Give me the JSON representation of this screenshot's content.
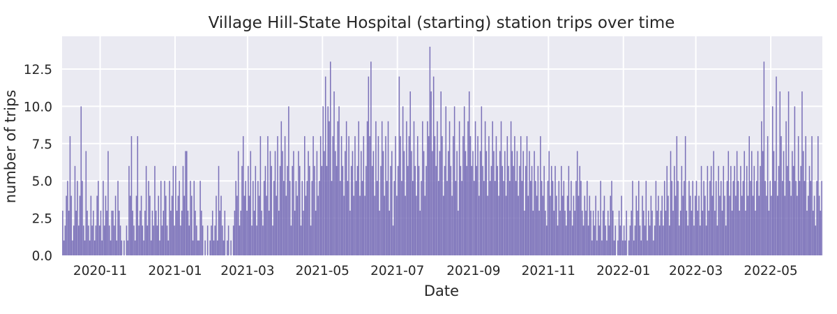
{
  "chart_data": {
    "type": "bar",
    "title": "Village Hill-State Hospital (starting) station trips over time",
    "xlabel": "Date",
    "ylabel": "number of trips",
    "x_range": [
      "2020-10-01",
      "2022-06-12"
    ],
    "ylim": [
      0,
      14.7
    ],
    "yticks": [
      0.0,
      2.5,
      5.0,
      7.5,
      10.0,
      12.5
    ],
    "yticklabels": [
      "0.0",
      "2.5",
      "5.0",
      "7.5",
      "10.0",
      "12.5"
    ],
    "xticks": [
      "2020-11-01",
      "2021-01-01",
      "2021-03-01",
      "2021-05-01",
      "2021-07-01",
      "2021-09-01",
      "2021-11-01",
      "2022-01-01",
      "2022-03-01",
      "2022-05-01"
    ],
    "xticklabels": [
      "2020-11",
      "2021-01",
      "2021-03",
      "2021-05",
      "2021-07",
      "2021-09",
      "2021-11",
      "2022-01",
      "2022-03",
      "2022-05"
    ],
    "grid": true,
    "colors": {
      "bar": "#7a70b8",
      "background": "#eaeaf2",
      "grid": "#ffffff"
    },
    "series": [
      {
        "monthly_daily_values": [
          {
            "month": "2020-10",
            "values": [
              3,
              1,
              2,
              4,
              5,
              3,
              8,
              4,
              1,
              2,
              6,
              3,
              5,
              2,
              4,
              10,
              5,
              2,
              1,
              7,
              3,
              2,
              1,
              4,
              2,
              3,
              1,
              2,
              4,
              5,
              2
            ]
          },
          {
            "month": "2020-11",
            "values": [
              3,
              1,
              5,
              2,
              4,
              3,
              7,
              2,
              1,
              3,
              3,
              2,
              4,
              1,
              5,
              3,
              2,
              1,
              0,
              1,
              0,
              2,
              1,
              6,
              4,
              8,
              3,
              2,
              1,
              4
            ]
          },
          {
            "month": "2020-12",
            "values": [
              8,
              2,
              3,
              4,
              2,
              1,
              3,
              6,
              2,
              5,
              4,
              1,
              3,
              2,
              6,
              3,
              2,
              4,
              1,
              5,
              2,
              3,
              5,
              4,
              2,
              1,
              5,
              3,
              4,
              6,
              2
            ]
          },
          {
            "month": "2021-01",
            "values": [
              6,
              3,
              4,
              5,
              2,
              3,
              6,
              4,
              7,
              7,
              3,
              2,
              5,
              4,
              1,
              5,
              3,
              2,
              1,
              1,
              5,
              3,
              2,
              0,
              1,
              0,
              2,
              0,
              1,
              2,
              3
            ]
          },
          {
            "month": "2021-02",
            "values": [
              1,
              2,
              4,
              1,
              6,
              3,
              4,
              2,
              1,
              3,
              0,
              1,
              2,
              0,
              1,
              0,
              2,
              3,
              5,
              4,
              7,
              2,
              3,
              6,
              8,
              4,
              5,
              3,
              6
            ]
          },
          {
            "month": "2021-03",
            "values": [
              5,
              4,
              7,
              2,
              5,
              3,
              6,
              2,
              5,
              4,
              8,
              3,
              2,
              5,
              6,
              4,
              8,
              3,
              7,
              6,
              2,
              5,
              7,
              4,
              8,
              3,
              6,
              9,
              7,
              5,
              8
            ]
          },
          {
            "month": "2021-04",
            "values": [
              4,
              6,
              10,
              5,
              2,
              6,
              7,
              3,
              5,
              4,
              7,
              6,
              2,
              5,
              3,
              8,
              4,
              5,
              7,
              6,
              2,
              5,
              8,
              6,
              3,
              7,
              4,
              5,
              8,
              6
            ]
          },
          {
            "month": "2021-05",
            "values": [
              10,
              7,
              12,
              6,
              10,
              9,
              13,
              5,
              8,
              11,
              7,
              6,
              9,
              10,
              5,
              8,
              6,
              4,
              7,
              9,
              5,
              8,
              3,
              6,
              7,
              4,
              8,
              5,
              6,
              9,
              4
            ]
          },
          {
            "month": "2021-06",
            "values": [
              7,
              5,
              8,
              4,
              6,
              9,
              12,
              8,
              13,
              6,
              7,
              4,
              9,
              5,
              8,
              3,
              6,
              9,
              7,
              4,
              8,
              5,
              9,
              3,
              6,
              7,
              2,
              5,
              8,
              4
            ]
          },
          {
            "month": "2021-07",
            "values": [
              6,
              12,
              8,
              5,
              10,
              7,
              4,
              9,
              6,
              8,
              11,
              7,
              5,
              9,
              6,
              4,
              8,
              6,
              3,
              5,
              9,
              7,
              4,
              6,
              9,
              8,
              14,
              11,
              7,
              12,
              8
            ]
          },
          {
            "month": "2021-08",
            "values": [
              6,
              9,
              5,
              7,
              11,
              8,
              4,
              6,
              10,
              5,
              7,
              9,
              6,
              4,
              8,
              10,
              5,
              7,
              3,
              9,
              6,
              5,
              8,
              10,
              7,
              6,
              9,
              11,
              8,
              6,
              7
            ]
          },
          {
            "month": "2021-09",
            "values": [
              5,
              9,
              6,
              8,
              4,
              7,
              10,
              6,
              5,
              9,
              7,
              4,
              8,
              5,
              6,
              9,
              7,
              5,
              8,
              6,
              4,
              7,
              9,
              6,
              5,
              7,
              4,
              8,
              6,
              5
            ]
          },
          {
            "month": "2021-10",
            "values": [
              9,
              7,
              6,
              8,
              5,
              7,
              4,
              6,
              8,
              5,
              7,
              3,
              6,
              8,
              4,
              7,
              5,
              6,
              3,
              7,
              5,
              4,
              6,
              3,
              8,
              5,
              4,
              6,
              3,
              2,
              5
            ]
          },
          {
            "month": "2021-11",
            "values": [
              7,
              4,
              6,
              5,
              3,
              6,
              4,
              2,
              5,
              3,
              6,
              4,
              5,
              3,
              2,
              4,
              6,
              3,
              5,
              2,
              4,
              3,
              5,
              7,
              4,
              6,
              5,
              3,
              2,
              4
            ]
          },
          {
            "month": "2021-12",
            "values": [
              3,
              5,
              2,
              4,
              3,
              1,
              3,
              2,
              4,
              1,
              3,
              2,
              5,
              1,
              3,
              4,
              2,
              1,
              3,
              2,
              4,
              5,
              3,
              1,
              2,
              0,
              1,
              3,
              2,
              4,
              1
            ]
          },
          {
            "month": "2022-01",
            "values": [
              2,
              1,
              3,
              0,
              1,
              2,
              3,
              5,
              1,
              2,
              4,
              3,
              5,
              2,
              1,
              4,
              3,
              2,
              5,
              1,
              3,
              2,
              4,
              3,
              1,
              2,
              5,
              3,
              4,
              2,
              3
            ]
          },
          {
            "month": "2022-02",
            "values": [
              4,
              2,
              5,
              3,
              6,
              4,
              2,
              7,
              5,
              3,
              6,
              4,
              8,
              5,
              2,
              3,
              6,
              4,
              5,
              8,
              3,
              2,
              5,
              4,
              3,
              5,
              2,
              4
            ]
          },
          {
            "month": "2022-03",
            "values": [
              5,
              3,
              4,
              2,
              6,
              3,
              5,
              4,
              2,
              6,
              3,
              5,
              6,
              4,
              7,
              3,
              5,
              2,
              6,
              4,
              5,
              3,
              6,
              4,
              2,
              5,
              7,
              4,
              6,
              3,
              5
            ]
          },
          {
            "month": "2022-04",
            "values": [
              6,
              4,
              7,
              5,
              3,
              6,
              4,
              5,
              7,
              3,
              6,
              4,
              8,
              5,
              7,
              4,
              6,
              3,
              5,
              7,
              4,
              6,
              9,
              7,
              13,
              5,
              4,
              8,
              3,
              5
            ]
          },
          {
            "month": "2022-05",
            "values": [
              4,
              10,
              7,
              5,
              12,
              4,
              6,
              11,
              8,
              5,
              7,
              4,
              9,
              6,
              11,
              5,
              4,
              7,
              6,
              10,
              5,
              4,
              8,
              5,
              6,
              11,
              7,
              5,
              8,
              3,
              4
            ]
          },
          {
            "month": "2022-06",
            "values": [
              6,
              5,
              8,
              3,
              4,
              2,
              5,
              8,
              4,
              3,
              5,
              2
            ]
          }
        ]
      }
    ]
  }
}
